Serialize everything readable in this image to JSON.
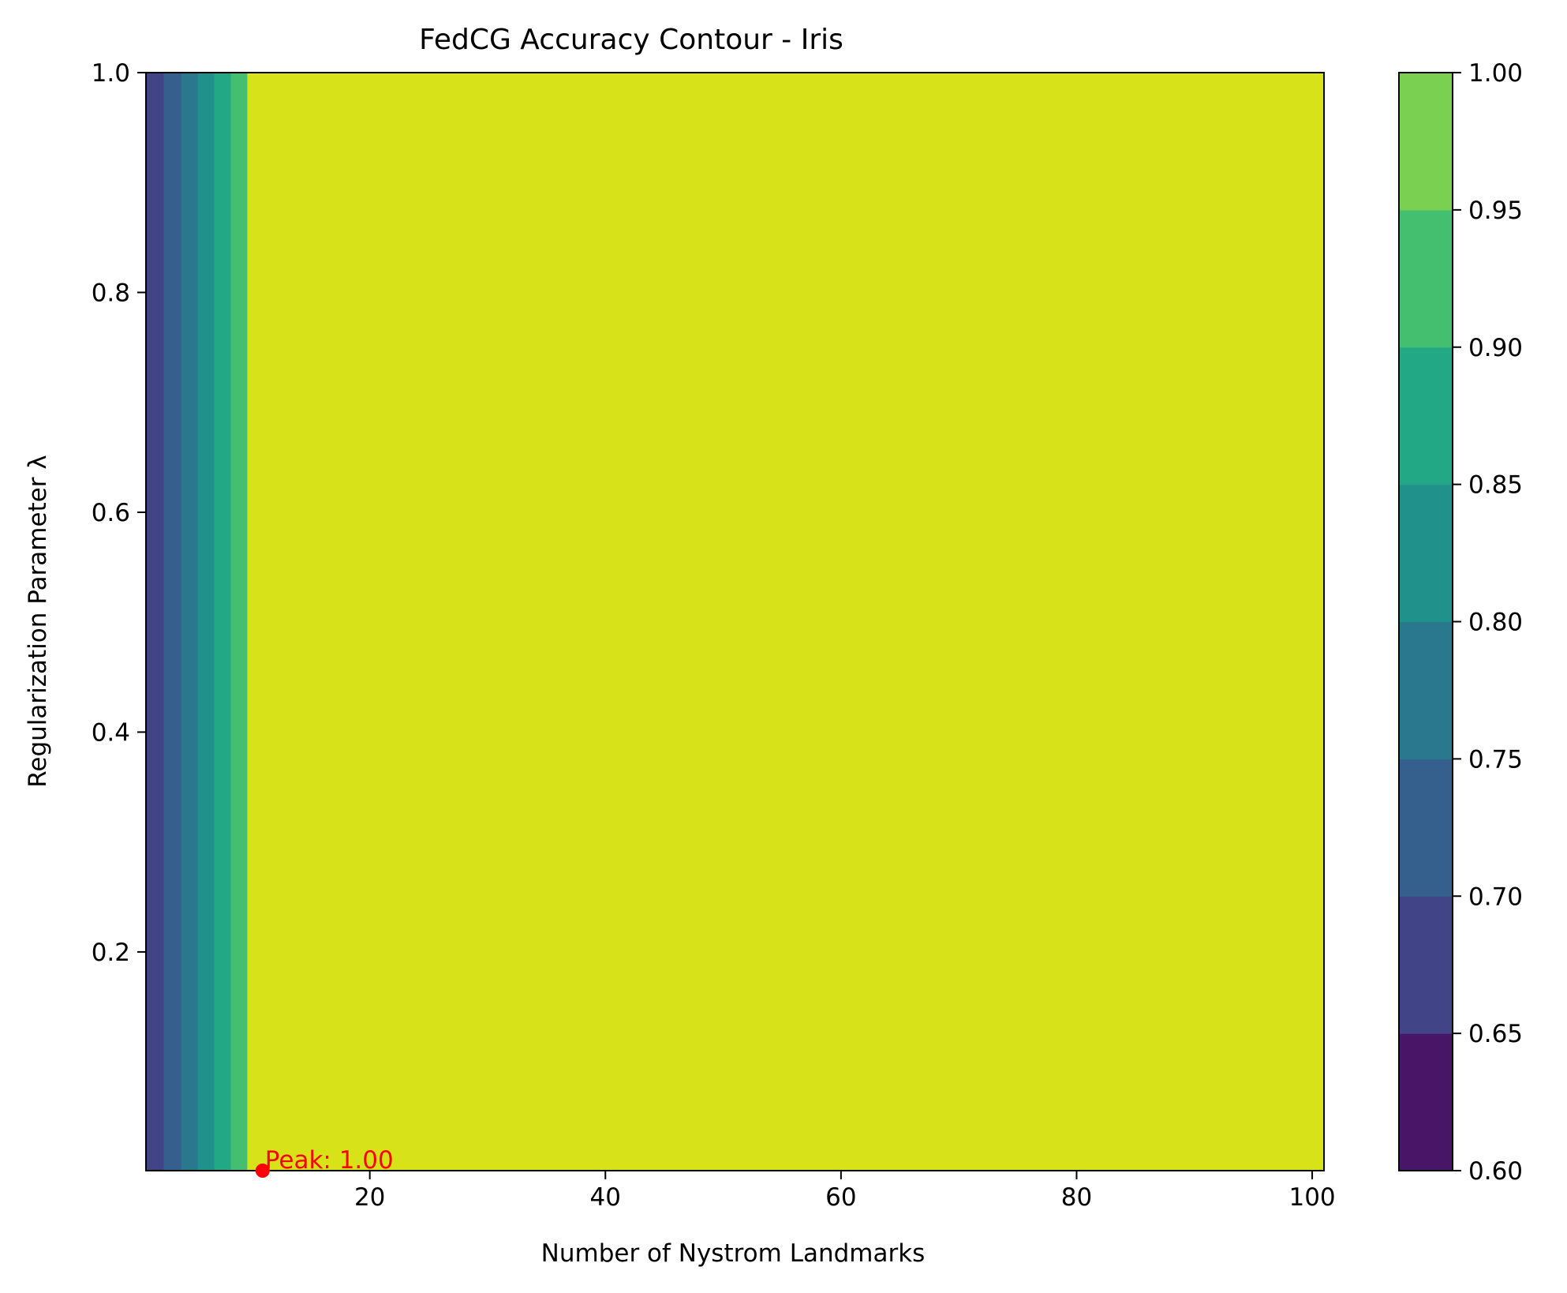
{
  "chart_data": {
    "type": "heatmap",
    "subtype": "filled-contour",
    "title": "FedCG Accuracy Contour - Iris",
    "xlabel": "Number of Nystrom Landmarks",
    "ylabel": "Regularization Parameter λ",
    "xlim": [
      1,
      101
    ],
    "ylim": [
      0.001,
      1.0
    ],
    "x_ticks": [
      20,
      40,
      60,
      80,
      100
    ],
    "x_tick_labels": [
      "20",
      "40",
      "60",
      "80",
      "100"
    ],
    "y_ticks": [
      0.2,
      0.4,
      0.6,
      0.8,
      1.0
    ],
    "y_tick_labels": [
      "0.2",
      "0.4",
      "0.6",
      "0.8",
      "1.0"
    ],
    "colormap": "viridis",
    "grid": false,
    "colorbar": {
      "levels": [
        0.6,
        0.65,
        0.7,
        0.75,
        0.8,
        0.85,
        0.9,
        0.95,
        1.0
      ],
      "tick_labels": [
        "0.60",
        "0.65",
        "0.70",
        "0.75",
        "0.80",
        "0.85",
        "0.90",
        "0.95",
        "1.00"
      ],
      "colors": [
        "#481567",
        "#414487",
        "#355f8d",
        "#2a788e",
        "#21918c",
        "#22a884",
        "#44bf70",
        "#7ad151",
        "#d8e219"
      ]
    },
    "bands": [
      {
        "x_start": 1.0,
        "x_end": 2.5,
        "level_index": 1
      },
      {
        "x_start": 2.5,
        "x_end": 4.0,
        "level_index": 2
      },
      {
        "x_start": 4.0,
        "x_end": 5.4,
        "level_index": 3
      },
      {
        "x_start": 5.4,
        "x_end": 6.8,
        "level_index": 4
      },
      {
        "x_start": 6.8,
        "x_end": 8.2,
        "level_index": 5
      },
      {
        "x_start": 8.2,
        "x_end": 9.6,
        "level_index": 6
      },
      {
        "x_start": 9.6,
        "x_end": 101.0,
        "level_index": 8
      }
    ],
    "peak": {
      "x": 10.9,
      "y": 0.001,
      "value": 1.0,
      "label": "Peak: 1.00",
      "color": "#ff0000"
    }
  }
}
